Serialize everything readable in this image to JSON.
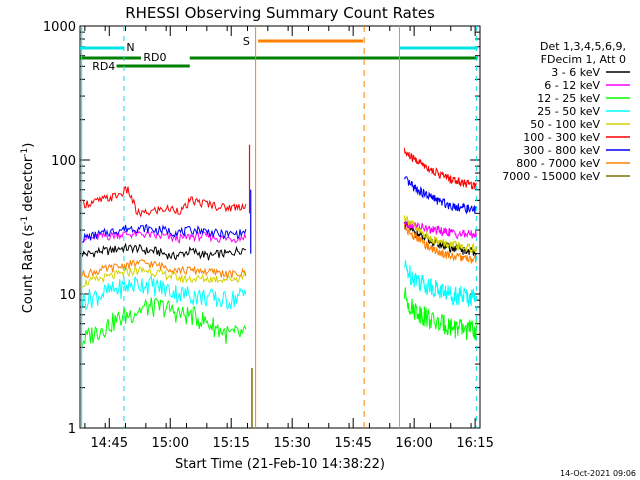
{
  "chart_data": {
    "type": "line",
    "title": "RHESSI Observing Summary Count Rates",
    "xlabel": "Start Time (21-Feb-10 14:38:22)",
    "ylabel": "Count Rate (s",
    "ylabel_sup": "-1",
    "ylabel_tail": " detector",
    "ylabel_close": ")",
    "yscale": "log",
    "ylim": [
      1,
      1000
    ],
    "xlim_minutes": [
      14.63,
      16.27
    ],
    "x_ticks": [
      {
        "label": "14:45",
        "t": 14.75
      },
      {
        "label": "15:00",
        "t": 15.0
      },
      {
        "label": "15:15",
        "t": 15.25
      },
      {
        "label": "15:30",
        "t": 15.5
      },
      {
        "label": "15:45",
        "t": 15.75
      },
      {
        "label": "16:00",
        "t": 16.0
      },
      {
        "label": "16:15",
        "t": 16.25
      }
    ],
    "y_ticks": [
      {
        "label": "1",
        "v": 1
      },
      {
        "label": "10",
        "v": 10
      },
      {
        "label": "100",
        "v": 100
      },
      {
        "label": "1000",
        "v": 1000
      }
    ],
    "legend_header": [
      "Det 1,3,4,5,6,9,",
      "FDecim 1, Att 0"
    ],
    "series": [
      {
        "name": "3 - 6 keV",
        "color": "#000000",
        "pre": [
          20,
          20,
          21,
          21,
          22,
          22,
          22,
          21,
          21,
          20,
          19,
          20,
          21,
          20,
          19,
          20,
          20,
          21,
          22
        ],
        "post": [
          33,
          30,
          28,
          26,
          25,
          24,
          23,
          22,
          22,
          21,
          21,
          21
        ]
      },
      {
        "name": "6 - 12 keV",
        "color": "#ff00ff",
        "pre": [
          26,
          26,
          27,
          27,
          28,
          28,
          28,
          28,
          27,
          27,
          26,
          26,
          27,
          27,
          27,
          26,
          26,
          26,
          27
        ],
        "post": [
          34,
          33,
          32,
          31,
          30,
          30,
          29,
          29,
          28,
          28,
          28,
          28
        ]
      },
      {
        "name": "12 - 25 keV",
        "color": "#00ff00",
        "pre": [
          4.5,
          5,
          5.5,
          6,
          6.5,
          7,
          7.5,
          8,
          8,
          8,
          7.5,
          7,
          7,
          6.5,
          6,
          5.5,
          5,
          5,
          5
        ],
        "post": [
          10,
          8,
          7.5,
          7,
          6.5,
          6,
          6,
          5.8,
          5.6,
          5.5,
          5.5,
          5.4
        ]
      },
      {
        "name": "25 - 50 keV",
        "color": "#00ffff",
        "pre": [
          9,
          9.5,
          10,
          10.5,
          11,
          11.5,
          12,
          12,
          11.5,
          11,
          10.5,
          10,
          10,
          9.5,
          9.5,
          9,
          9,
          9.5,
          10
        ],
        "post": [
          16,
          14,
          13,
          12,
          11.5,
          11,
          10.5,
          10,
          10,
          9.8,
          9.6,
          9.5
        ]
      },
      {
        "name": "50 - 100 keV",
        "color": "#d4d400",
        "pre": [
          12,
          12.5,
          13,
          13.5,
          14,
          14.5,
          15,
          15,
          14.5,
          14,
          13.5,
          13,
          13,
          13,
          13,
          13,
          13,
          13,
          14
        ],
        "post": [
          38,
          34,
          30,
          28,
          26,
          25,
          24,
          23,
          23,
          22,
          22,
          22
        ]
      },
      {
        "name": "100 - 300 keV",
        "color": "#ff0000",
        "pre": [
          47,
          48,
          50,
          52,
          55,
          60,
          40,
          40,
          42,
          43,
          43,
          42,
          50,
          48,
          47,
          45,
          44,
          45,
          46
        ],
        "post": [
          115,
          105,
          98,
          92,
          85,
          80,
          76,
          72,
          70,
          68,
          66,
          64
        ]
      },
      {
        "name": "300 - 800 keV",
        "color": "#0000ff",
        "pre": [
          26,
          27,
          28,
          29,
          30,
          31,
          31,
          31,
          30,
          30,
          29,
          29,
          30,
          30,
          29,
          28,
          28,
          28,
          29
        ],
        "post": [
          72,
          65,
          60,
          56,
          53,
          50,
          48,
          46,
          45,
          44,
          43,
          42
        ]
      },
      {
        "name": "800 - 7000 keV",
        "color": "#ff8000",
        "pre": [
          14,
          14.5,
          15,
          15.5,
          16,
          16.5,
          17,
          17,
          16.5,
          16,
          15.5,
          15,
          15,
          15,
          14.5,
          14.5,
          14,
          14,
          14.5
        ],
        "post": [
          32,
          28,
          26,
          24,
          22,
          21,
          20,
          19.5,
          19,
          18.5,
          18,
          18
        ]
      },
      {
        "name": "7000 - 15000 keV",
        "color": "#807000",
        "pre": [],
        "post": []
      }
    ],
    "annotations": [
      {
        "text": "N",
        "color": "#00e5e5"
      },
      {
        "text": "RD0",
        "color": "#008000"
      },
      {
        "text": "RD4",
        "color": "#008000"
      },
      {
        "text": "S",
        "color": "#ff8000"
      }
    ]
  },
  "footer": {
    "date": "14-Oct-2021 09:06"
  }
}
